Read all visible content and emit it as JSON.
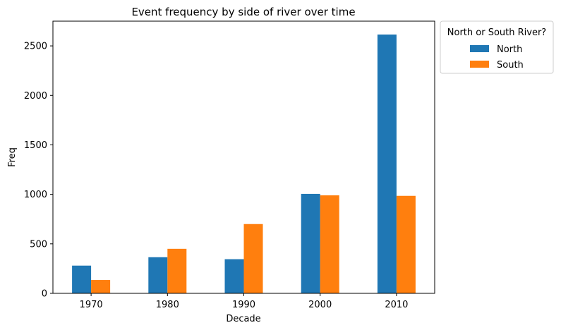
{
  "chart_data": {
    "type": "bar",
    "title": "Event frequency by side of river over time",
    "xlabel": "Decade",
    "ylabel": "Freq",
    "categories": [
      "1970",
      "1980",
      "1990",
      "2000",
      "2010"
    ],
    "series": [
      {
        "name": "North",
        "color": "#1f77b4",
        "values": [
          280,
          365,
          345,
          1005,
          2615
        ]
      },
      {
        "name": "South",
        "color": "#ff7f0e",
        "values": [
          135,
          450,
          700,
          990,
          985
        ]
      }
    ],
    "ylim": [
      0,
      2750
    ],
    "yticks": [
      0,
      500,
      1000,
      1500,
      2000,
      2500
    ],
    "grid": false,
    "legend": {
      "title": "North or South River?",
      "placement": "outside-top-right"
    }
  }
}
